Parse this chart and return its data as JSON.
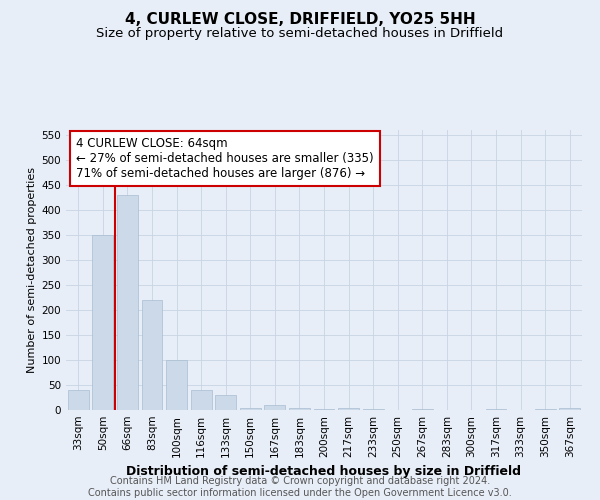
{
  "title": "4, CURLEW CLOSE, DRIFFIELD, YO25 5HH",
  "subtitle": "Size of property relative to semi-detached houses in Driffield",
  "xlabel": "Distribution of semi-detached houses by size in Driffield",
  "ylabel": "Number of semi-detached properties",
  "categories": [
    "33sqm",
    "50sqm",
    "66sqm",
    "83sqm",
    "100sqm",
    "116sqm",
    "133sqm",
    "150sqm",
    "167sqm",
    "183sqm",
    "200sqm",
    "217sqm",
    "233sqm",
    "250sqm",
    "267sqm",
    "283sqm",
    "300sqm",
    "317sqm",
    "333sqm",
    "350sqm",
    "367sqm"
  ],
  "values": [
    40,
    350,
    430,
    220,
    100,
    40,
    30,
    5,
    10,
    5,
    2,
    5,
    2,
    1,
    2,
    1,
    1,
    2,
    1,
    2,
    5
  ],
  "bar_color": "#ccd9e8",
  "bar_edge_color": "#a8bdd0",
  "property_line_color": "#cc0000",
  "property_line_index": 1.5,
  "annotation_text": "4 CURLEW CLOSE: 64sqm\n← 27% of semi-detached houses are smaller (335)\n71% of semi-detached houses are larger (876) →",
  "annotation_box_color": "#ffffff",
  "annotation_box_edge_color": "#cc0000",
  "ylim": [
    0,
    560
  ],
  "yticks": [
    0,
    50,
    100,
    150,
    200,
    250,
    300,
    350,
    400,
    450,
    500,
    550
  ],
  "grid_color": "#c8d4e4",
  "background_color": "#e8eef8",
  "footer_text": "Contains HM Land Registry data © Crown copyright and database right 2024.\nContains public sector information licensed under the Open Government Licence v3.0.",
  "title_fontsize": 11,
  "subtitle_fontsize": 9.5,
  "xlabel_fontsize": 9,
  "ylabel_fontsize": 8,
  "tick_fontsize": 7.5,
  "annotation_fontsize": 8.5,
  "footer_fontsize": 7
}
